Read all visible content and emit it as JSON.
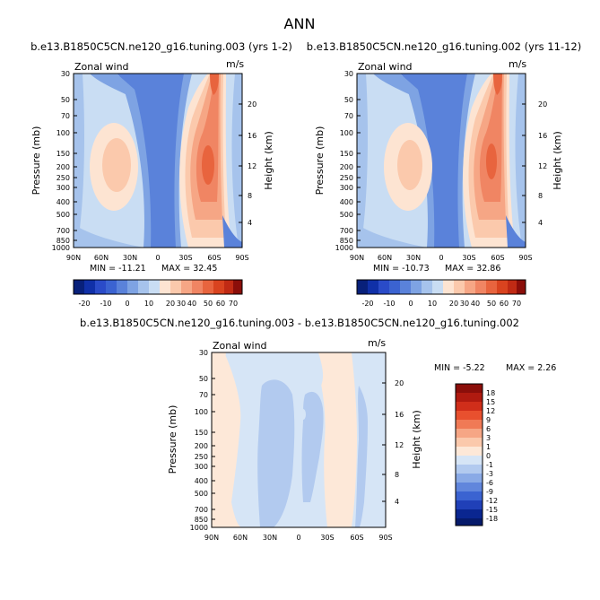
{
  "figure_title": "ANN",
  "colors": {
    "panel_positive": [
      "#fde4d2",
      "#fbc9ac",
      "#f6a685",
      "#f08563",
      "#e8643e",
      "#d9431f"
    ],
    "panel_negative": [
      "#c9ddf3",
      "#a6c3ec",
      "#7ea3e3",
      "#5a82da",
      "#3b63d1"
    ],
    "diff_positive": [
      "#fde8d8"
    ],
    "diff_negative": [
      "#d6e5f6",
      "#b2caef"
    ]
  },
  "chart_data": [
    {
      "type": "contour",
      "title": "b.e13.B1850C5CN.ne120_g16.tuning.003 (yrs 1-2)",
      "variable": "Zonal wind",
      "units": "m/s",
      "ylabel": "Pressure (mb)",
      "ylabel_right": "Height (km)",
      "x_ticks": [
        "90N",
        "60N",
        "30N",
        "0",
        "30S",
        "60S",
        "90S"
      ],
      "y_ticks": [
        "30",
        "50",
        "70",
        "100",
        "150",
        "200",
        "250",
        "300",
        "400",
        "500",
        "700",
        "850",
        "1000"
      ],
      "height_ticks": [
        "20",
        "16",
        "12",
        "8",
        "4"
      ],
      "min_label": "MIN = -11.21",
      "max_label": "MAX = 32.45",
      "min": -11.21,
      "max": 32.45,
      "colorbar_levels": [
        "-20",
        "-10",
        "0",
        "10",
        "20",
        "30",
        "40",
        "50",
        "60",
        "70"
      ]
    },
    {
      "type": "contour",
      "title": "b.e13.B1850C5CN.ne120_g16.tuning.002 (yrs 11-12)",
      "variable": "Zonal wind",
      "units": "m/s",
      "ylabel": "Pressure (mb)",
      "ylabel_right": "Height (km)",
      "x_ticks": [
        "90N",
        "60N",
        "30N",
        "0",
        "30S",
        "60S",
        "90S"
      ],
      "y_ticks": [
        "30",
        "50",
        "70",
        "100",
        "150",
        "200",
        "250",
        "300",
        "400",
        "500",
        "700",
        "850",
        "1000"
      ],
      "height_ticks": [
        "20",
        "16",
        "12",
        "8",
        "4"
      ],
      "min_label": "MIN = -10.73",
      "max_label": "MAX = 32.86",
      "min": -10.73,
      "max": 32.86,
      "colorbar_levels": [
        "-20",
        "-10",
        "0",
        "10",
        "20",
        "30",
        "40",
        "50",
        "60",
        "70"
      ]
    },
    {
      "type": "contour",
      "title": "b.e13.B1850C5CN.ne120_g16.tuning.003 - b.e13.B1850C5CN.ne120_g16.tuning.002",
      "variable": "Zonal wind",
      "units": "m/s",
      "ylabel": "Pressure (mb)",
      "ylabel_right": "Height (km)",
      "x_ticks": [
        "90N",
        "60N",
        "30N",
        "0",
        "30S",
        "60S",
        "90S"
      ],
      "y_ticks": [
        "30",
        "50",
        "70",
        "100",
        "150",
        "200",
        "250",
        "300",
        "400",
        "500",
        "700",
        "850",
        "1000"
      ],
      "height_ticks": [
        "20",
        "16",
        "12",
        "8",
        "4"
      ],
      "min_label": "MIN = -5.22",
      "max_label": "MAX = 2.26",
      "min": -5.22,
      "max": 2.26,
      "colorbar_levels": [
        "18",
        "15",
        "12",
        "9",
        "6",
        "3",
        "1",
        "0",
        "-1",
        "-3",
        "-6",
        "-9",
        "-12",
        "-15",
        "-18"
      ]
    }
  ]
}
